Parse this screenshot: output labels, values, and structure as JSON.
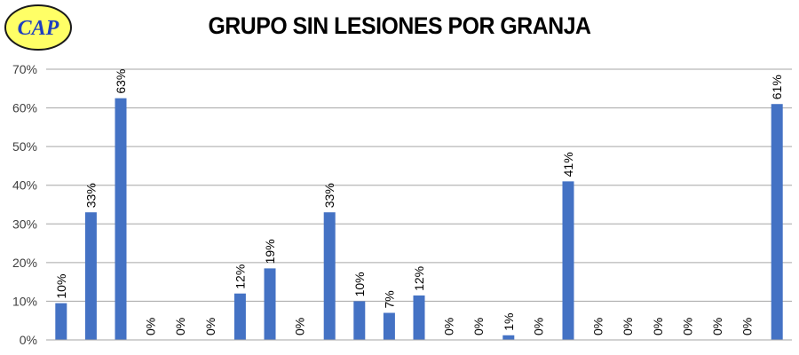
{
  "logo": {
    "text": "CAP",
    "fill": "#ffff66",
    "text_color": "#1f3fbf"
  },
  "chart_data": {
    "type": "bar",
    "title": "GRUPO SIN LESIONES POR GRANJA",
    "xlabel": "",
    "ylabel": "",
    "ylim": [
      0,
      70
    ],
    "yticks": [
      "0%",
      "10%",
      "20%",
      "30%",
      "40%",
      "50%",
      "60%",
      "70%"
    ],
    "grid": true,
    "bar_color": "#4472c4",
    "values": [
      9.5,
      33,
      62.5,
      0,
      0,
      0,
      12,
      18.5,
      0,
      33,
      10,
      7,
      11.5,
      0,
      0,
      1.2,
      0,
      41,
      0,
      0,
      0,
      0,
      0,
      0,
      61
    ],
    "labels": [
      "10%",
      "33%",
      "63%",
      "0%",
      "0%",
      "0%",
      "12%",
      "19%",
      "0%",
      "33%",
      "10%",
      "7%",
      "12%",
      "0%",
      "0%",
      "1%",
      "0%",
      "41%",
      "0%",
      "0%",
      "0%",
      "0%",
      "0%",
      "0%",
      "61%"
    ]
  }
}
